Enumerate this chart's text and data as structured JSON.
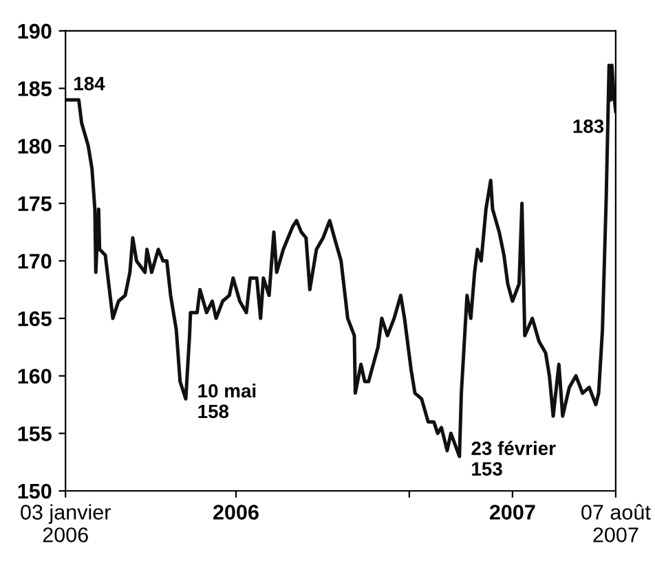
{
  "chart_data": {
    "type": "line",
    "x": [
      "2006-01-03",
      "2006-01-17",
      "2006-01-20",
      "2006-01-27",
      "2006-01-31",
      "2006-02-03",
      "2006-02-04",
      "2006-02-07",
      "2006-02-08",
      "2006-02-14",
      "2006-02-22",
      "2006-02-28",
      "2006-03-07",
      "2006-03-12",
      "2006-03-15",
      "2006-03-19",
      "2006-03-28",
      "2006-03-30",
      "2006-04-04",
      "2006-04-11",
      "2006-04-16",
      "2006-04-20",
      "2006-04-24",
      "2006-04-30",
      "2006-05-04",
      "2006-05-10",
      "2006-05-14",
      "2006-05-15",
      "2006-05-22",
      "2006-05-25",
      "2006-06-01",
      "2006-06-07",
      "2006-06-11",
      "2006-06-18",
      "2006-06-25",
      "2006-06-29",
      "2006-07-06",
      "2006-07-13",
      "2006-07-17",
      "2006-07-24",
      "2006-07-28",
      "2006-07-31",
      "2006-08-06",
      "2006-08-11",
      "2006-08-14",
      "2006-08-21",
      "2006-08-31",
      "2006-09-04",
      "2006-09-09",
      "2006-09-14",
      "2006-09-18",
      "2006-09-25",
      "2006-10-02",
      "2006-10-09",
      "2006-10-14",
      "2006-10-21",
      "2006-10-28",
      "2006-11-04",
      "2006-11-05",
      "2006-11-11",
      "2006-11-15",
      "2006-11-19",
      "2006-11-29",
      "2006-12-03",
      "2006-12-09",
      "2006-12-16",
      "2006-12-23",
      "2006-12-27",
      "2007-01-03",
      "2007-01-07",
      "2007-01-14",
      "2007-01-21",
      "2007-01-27",
      "2007-01-31",
      "2007-02-04",
      "2007-02-10",
      "2007-02-14",
      "2007-02-23",
      "2007-02-25",
      "2007-03-03",
      "2007-03-07",
      "2007-03-11",
      "2007-03-14",
      "2007-03-18",
      "2007-03-23",
      "2007-03-28",
      "2007-03-30",
      "2007-04-06",
      "2007-04-11",
      "2007-04-15",
      "2007-04-20",
      "2007-04-27",
      "2007-04-30",
      "2007-05-03",
      "2007-05-11",
      "2007-05-18",
      "2007-05-25",
      "2007-05-29",
      "2007-06-02",
      "2007-06-08",
      "2007-06-12",
      "2007-06-19",
      "2007-06-26",
      "2007-07-03",
      "2007-07-10",
      "2007-07-17",
      "2007-07-20",
      "2007-07-24",
      "2007-07-28",
      "2007-07-31",
      "2007-08-02",
      "2007-08-03",
      "2007-08-05",
      "2007-08-07"
    ],
    "series": [
      {
        "color": "#111111",
        "values": [
          184,
          184,
          182,
          180,
          178,
          174.5,
          169,
          174.5,
          171,
          170.5,
          165,
          166.5,
          167,
          169,
          172,
          170,
          169,
          171,
          169,
          171,
          170,
          170,
          167,
          164,
          159.5,
          158,
          163.5,
          165.5,
          165.5,
          167.5,
          165.5,
          166.5,
          165,
          166.5,
          167,
          168.5,
          166.5,
          165.5,
          168.5,
          168.5,
          165,
          168.5,
          167,
          172.5,
          169,
          171,
          173,
          173.5,
          172.5,
          172,
          167.5,
          171,
          172,
          173.5,
          172,
          170,
          165,
          163.5,
          158.5,
          161,
          159.5,
          159.5,
          162.5,
          165,
          163.5,
          165,
          167,
          165,
          160.5,
          158.5,
          158,
          156,
          156,
          155,
          155.5,
          153.5,
          155,
          153,
          158.5,
          167,
          165,
          169,
          171,
          170,
          174.5,
          177,
          174.5,
          172.5,
          170.5,
          168,
          166.5,
          168,
          175,
          163.5,
          165,
          163,
          162,
          160,
          156.5,
          161,
          156.5,
          159,
          160,
          158.5,
          159,
          157.5,
          158.5,
          164,
          175.5,
          187,
          184,
          187,
          184.5,
          183
        ]
      }
    ],
    "xlim": [
      "2006-01-03",
      "2007-08-07"
    ],
    "xticks": [
      {
        "value": "2006-01-03",
        "label": "03 janvier\n2006"
      },
      {
        "value": "2006-07-02",
        "label": "2006"
      },
      {
        "value": "2007-01-01",
        "label": null
      },
      {
        "value": "2007-04-20",
        "label": "2007"
      },
      {
        "value": "2007-08-07",
        "label": "07 août\n2007"
      }
    ],
    "ylim": [
      150,
      190
    ],
    "yticks": [
      150,
      155,
      160,
      165,
      170,
      175,
      180,
      185,
      190
    ],
    "annotations": [
      {
        "text": "184",
        "x": "2006-01-03",
        "y": 184
      },
      {
        "text": "10 mai\n158",
        "x": "2006-05-10",
        "y": 158
      },
      {
        "text": "23 février\n153",
        "x": "2007-02-23",
        "y": 153
      },
      {
        "text": "183",
        "x": "2007-08-07",
        "y": 183
      }
    ],
    "grid": false,
    "legend": false,
    "line_style": "solid",
    "marker": "none"
  }
}
